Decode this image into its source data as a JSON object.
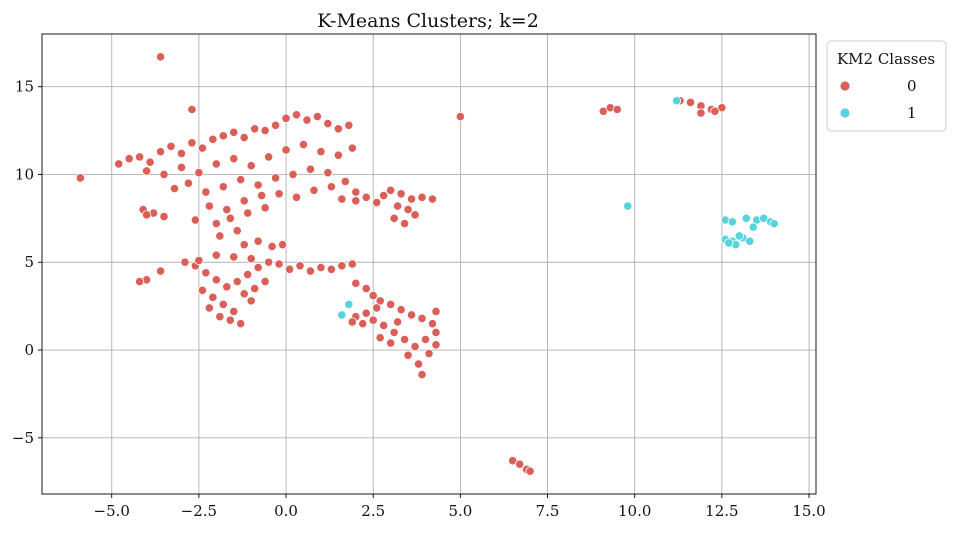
{
  "chart_data": {
    "type": "scatter",
    "title": "K-Means Clusters; k=2",
    "xlabel": "",
    "ylabel": "",
    "xlim": [
      -7.0,
      15.2
    ],
    "ylim": [
      -8.2,
      18.0
    ],
    "x_ticks": [
      -5.0,
      -2.5,
      0.0,
      2.5,
      5.0,
      7.5,
      10.0,
      12.5,
      15.0
    ],
    "x_tick_labels": [
      "−5.0",
      "−2.5",
      "0.0",
      "2.5",
      "5.0",
      "7.5",
      "10.0",
      "12.5",
      "15.0"
    ],
    "y_ticks": [
      -5,
      0,
      5,
      10,
      15
    ],
    "y_tick_labels": [
      "−5",
      "0",
      "5",
      "10",
      "15"
    ],
    "grid": true,
    "legend": {
      "title": "KM2 Classes",
      "placement": "outside-top-right",
      "entries": [
        {
          "label": "0",
          "color": "#db5f57"
        },
        {
          "label": "1",
          "color": "#57d3db"
        }
      ]
    },
    "series": [
      {
        "name": "0",
        "color": "#db5f57",
        "points": [
          [
            -4.8,
            10.6
          ],
          [
            -4.5,
            10.9
          ],
          [
            -4.2,
            11.0
          ],
          [
            -3.9,
            10.7
          ],
          [
            -3.6,
            11.3
          ],
          [
            -3.3,
            11.6
          ],
          [
            -3.0,
            11.2
          ],
          [
            -2.7,
            11.8
          ],
          [
            -2.4,
            11.5
          ],
          [
            -2.1,
            12.0
          ],
          [
            -1.8,
            12.2
          ],
          [
            -1.5,
            12.4
          ],
          [
            -1.2,
            12.1
          ],
          [
            -0.9,
            12.6
          ],
          [
            -0.6,
            12.5
          ],
          [
            -0.3,
            12.8
          ],
          [
            0.0,
            13.2
          ],
          [
            0.3,
            13.4
          ],
          [
            0.6,
            13.1
          ],
          [
            0.9,
            13.3
          ],
          [
            1.2,
            12.9
          ],
          [
            1.5,
            12.6
          ],
          [
            1.8,
            12.8
          ],
          [
            1.9,
            11.5
          ],
          [
            -4.0,
            10.2
          ],
          [
            -3.5,
            10.0
          ],
          [
            -3.0,
            10.4
          ],
          [
            -2.5,
            10.1
          ],
          [
            -2.0,
            10.6
          ],
          [
            -1.5,
            10.9
          ],
          [
            -1.0,
            10.5
          ],
          [
            -0.5,
            11.0
          ],
          [
            0.0,
            11.4
          ],
          [
            0.5,
            11.7
          ],
          [
            1.0,
            11.3
          ],
          [
            1.5,
            11.1
          ],
          [
            -3.2,
            9.2
          ],
          [
            -2.8,
            9.5
          ],
          [
            -2.3,
            9.0
          ],
          [
            -1.8,
            9.3
          ],
          [
            -1.3,
            9.7
          ],
          [
            -0.8,
            9.4
          ],
          [
            -0.3,
            9.8
          ],
          [
            0.2,
            10.0
          ],
          [
            0.7,
            10.3
          ],
          [
            1.2,
            10.1
          ],
          [
            1.7,
            9.6
          ],
          [
            2.0,
            9.0
          ],
          [
            -2.2,
            8.2
          ],
          [
            -1.7,
            8.0
          ],
          [
            -1.2,
            8.5
          ],
          [
            -0.7,
            8.8
          ],
          [
            -0.2,
            8.9
          ],
          [
            0.3,
            8.7
          ],
          [
            0.8,
            9.1
          ],
          [
            1.3,
            9.3
          ],
          [
            -2.0,
            7.2
          ],
          [
            -1.6,
            7.5
          ],
          [
            -1.4,
            6.8
          ],
          [
            -1.9,
            6.5
          ],
          [
            -2.6,
            7.4
          ],
          [
            -1.1,
            7.8
          ],
          [
            -0.6,
            8.1
          ],
          [
            1.6,
            8.6
          ],
          [
            -4.1,
            8.0
          ],
          [
            -3.8,
            7.8
          ],
          [
            -3.5,
            7.6
          ],
          [
            -4.0,
            7.7
          ],
          [
            -5.9,
            9.8
          ],
          [
            -3.6,
            16.7
          ],
          [
            -2.7,
            13.7
          ],
          [
            5.0,
            13.3
          ],
          [
            2.0,
            8.5
          ],
          [
            2.3,
            8.7
          ],
          [
            2.6,
            8.4
          ],
          [
            2.8,
            8.8
          ],
          [
            3.0,
            9.1
          ],
          [
            3.3,
            8.9
          ],
          [
            3.6,
            8.6
          ],
          [
            3.9,
            8.7
          ],
          [
            4.2,
            8.6
          ],
          [
            3.1,
            7.5
          ],
          [
            3.4,
            7.2
          ],
          [
            3.7,
            7.7
          ],
          [
            3.5,
            8.0
          ],
          [
            3.2,
            8.2
          ],
          [
            -2.6,
            4.8
          ],
          [
            -2.3,
            4.4
          ],
          [
            -2.0,
            4.0
          ],
          [
            -1.7,
            3.6
          ],
          [
            -1.4,
            3.9
          ],
          [
            -1.1,
            4.3
          ],
          [
            -0.8,
            4.7
          ],
          [
            -0.5,
            5.0
          ],
          [
            -0.2,
            4.9
          ],
          [
            0.1,
            4.6
          ],
          [
            0.4,
            4.8
          ],
          [
            0.7,
            4.5
          ],
          [
            1.0,
            4.7
          ],
          [
            1.3,
            4.6
          ],
          [
            1.6,
            4.8
          ],
          [
            1.9,
            4.9
          ],
          [
            -2.4,
            3.4
          ],
          [
            -2.1,
            3.0
          ],
          [
            -1.8,
            2.6
          ],
          [
            -1.5,
            2.2
          ],
          [
            -1.6,
            1.7
          ],
          [
            -1.3,
            1.5
          ],
          [
            -1.9,
            1.9
          ],
          [
            -2.2,
            2.4
          ],
          [
            -1.2,
            3.2
          ],
          [
            -0.9,
            3.5
          ],
          [
            -0.6,
            3.9
          ],
          [
            -1.0,
            2.8
          ],
          [
            -2.5,
            5.1
          ],
          [
            -2.0,
            5.4
          ],
          [
            -1.5,
            5.3
          ],
          [
            -1.0,
            5.2
          ],
          [
            -2.9,
            5.0
          ],
          [
            -3.6,
            4.5
          ],
          [
            -4.0,
            4.0
          ],
          [
            -4.2,
            3.9
          ],
          [
            -1.2,
            6.0
          ],
          [
            -0.8,
            6.2
          ],
          [
            -0.4,
            5.9
          ],
          [
            -0.1,
            6.0
          ],
          [
            2.0,
            3.8
          ],
          [
            2.3,
            3.5
          ],
          [
            2.5,
            3.1
          ],
          [
            2.7,
            2.8
          ],
          [
            3.0,
            2.6
          ],
          [
            3.3,
            2.3
          ],
          [
            3.6,
            2.0
          ],
          [
            3.9,
            1.8
          ],
          [
            4.2,
            1.5
          ],
          [
            4.3,
            1.0
          ],
          [
            4.0,
            0.6
          ],
          [
            3.7,
            0.2
          ],
          [
            3.4,
            0.6
          ],
          [
            3.1,
            1.0
          ],
          [
            2.8,
            1.4
          ],
          [
            2.5,
            1.7
          ],
          [
            2.2,
            1.5
          ],
          [
            2.0,
            1.9
          ],
          [
            1.9,
            1.6
          ],
          [
            2.7,
            0.7
          ],
          [
            3.0,
            0.4
          ],
          [
            3.5,
            -0.3
          ],
          [
            3.8,
            -0.8
          ],
          [
            3.9,
            -1.4
          ],
          [
            4.1,
            -0.2
          ],
          [
            4.3,
            0.3
          ],
          [
            4.3,
            2.2
          ],
          [
            2.6,
            2.4
          ],
          [
            3.2,
            1.6
          ],
          [
            2.3,
            2.1
          ],
          [
            9.1,
            13.6
          ],
          [
            9.3,
            13.8
          ],
          [
            9.5,
            13.7
          ],
          [
            11.3,
            14.2
          ],
          [
            11.6,
            14.1
          ],
          [
            11.9,
            13.9
          ],
          [
            12.2,
            13.7
          ],
          [
            12.5,
            13.8
          ],
          [
            11.9,
            13.5
          ],
          [
            12.3,
            13.6
          ],
          [
            6.5,
            -6.3
          ],
          [
            6.7,
            -6.5
          ],
          [
            6.9,
            -6.8
          ],
          [
            7.0,
            -6.9
          ]
        ]
      },
      {
        "name": "1",
        "color": "#57d3db",
        "points": [
          [
            11.2,
            14.2
          ],
          [
            9.8,
            8.2
          ],
          [
            1.8,
            2.6
          ],
          [
            1.6,
            2.0
          ],
          [
            12.6,
            7.4
          ],
          [
            12.8,
            7.3
          ],
          [
            13.2,
            7.5
          ],
          [
            13.5,
            7.4
          ],
          [
            13.7,
            7.5
          ],
          [
            13.9,
            7.3
          ],
          [
            14.0,
            7.2
          ],
          [
            13.4,
            7.0
          ],
          [
            12.6,
            6.3
          ],
          [
            12.8,
            6.2
          ],
          [
            12.9,
            6.0
          ],
          [
            13.1,
            6.4
          ],
          [
            13.3,
            6.2
          ],
          [
            13.0,
            6.5
          ],
          [
            12.7,
            6.1
          ]
        ]
      }
    ]
  }
}
